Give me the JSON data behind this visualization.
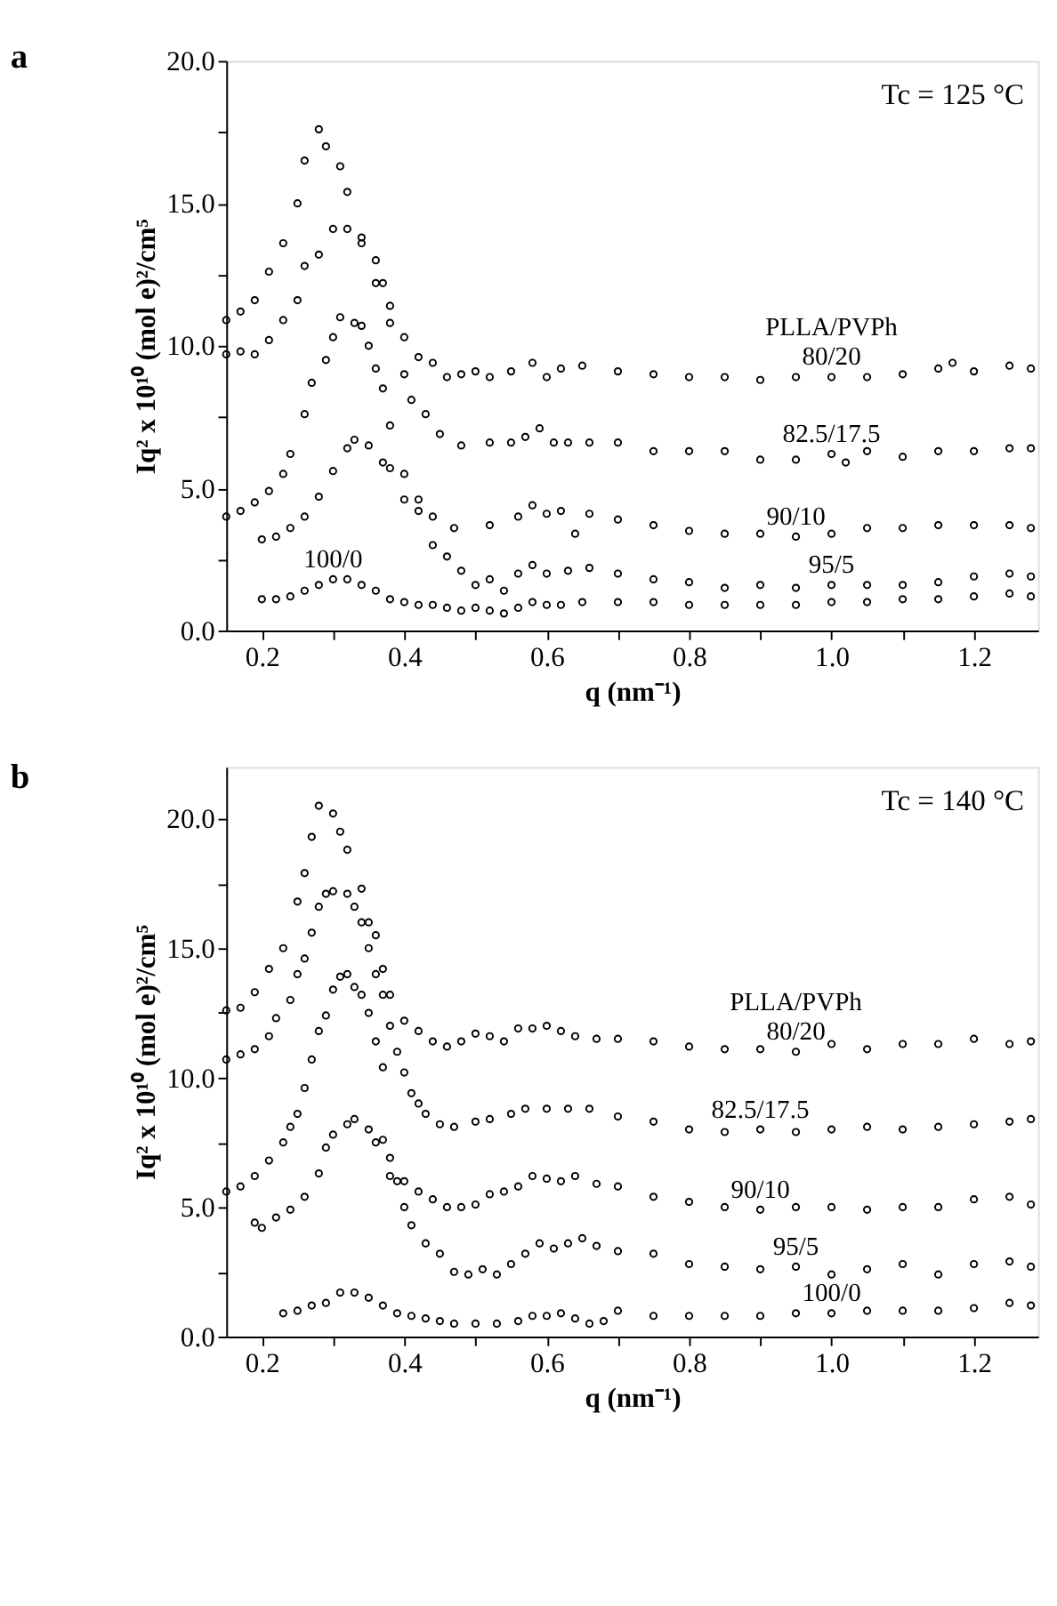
{
  "chart_data": [
    {
      "type": "scatter",
      "title": "a",
      "xlabel": "q (nm⁻¹)",
      "ylabel": "Iq² x 10¹⁰ (mol e)²/cm⁵",
      "legend_title": "PLLA/PVPh",
      "annotations": [
        "Tc = 125 °C"
      ],
      "marker": "circle",
      "grid": false,
      "legend": false,
      "xlim": [
        0.15,
        1.29
      ],
      "ylim": [
        0,
        20
      ],
      "xticks": [
        {
          "value": 0.2,
          "label": "0.2"
        },
        {
          "value": 0.3,
          "label": null
        },
        {
          "value": 0.4,
          "label": "0.4"
        },
        {
          "value": 0.5,
          "label": null
        },
        {
          "value": 0.6,
          "label": "0.6"
        },
        {
          "value": 0.7,
          "label": null
        },
        {
          "value": 0.8,
          "label": "0.8"
        },
        {
          "value": 0.9,
          "label": null
        },
        {
          "value": 1.0,
          "label": "1.0"
        },
        {
          "value": 1.1,
          "label": null
        },
        {
          "value": 1.2,
          "label": "1.2"
        }
      ],
      "yticks": [
        {
          "value": 0,
          "label": "0.0"
        },
        {
          "value": 2.5,
          "label": null
        },
        {
          "value": 5,
          "label": "5.0"
        },
        {
          "value": 7.5,
          "label": null
        },
        {
          "value": 10,
          "label": "10.0"
        },
        {
          "value": 12.5,
          "label": null
        },
        {
          "value": 15,
          "label": "15.0"
        },
        {
          "value": 17.5,
          "label": null
        },
        {
          "value": 20,
          "label": "20.0"
        }
      ],
      "series": [
        {
          "name": "80/20",
          "color": "#000000",
          "x": [
            0.15,
            0.17,
            0.19,
            0.21,
            0.23,
            0.25,
            0.26,
            0.28,
            0.29,
            0.31,
            0.32,
            0.34,
            0.36,
            0.38,
            0.4,
            0.42,
            0.44,
            0.46,
            0.48,
            0.5,
            0.52,
            0.55,
            0.58,
            0.6,
            0.62,
            0.65,
            0.7,
            0.75,
            0.8,
            0.85,
            0.9,
            0.95,
            1.0,
            1.05,
            1.1,
            1.15,
            1.17,
            1.2,
            1.25,
            1.28
          ],
          "values": [
            10.9,
            11.2,
            11.6,
            12.6,
            13.6,
            15.0,
            16.5,
            17.6,
            17.0,
            16.3,
            15.4,
            13.8,
            12.2,
            10.8,
            10.3,
            9.6,
            9.4,
            8.9,
            9.0,
            9.1,
            8.9,
            9.1,
            9.4,
            8.9,
            9.2,
            9.3,
            9.1,
            9.0,
            8.9,
            8.9,
            8.8,
            8.9,
            8.9,
            8.9,
            9.0,
            9.2,
            9.4,
            9.1,
            9.3,
            9.2
          ]
        },
        {
          "name": "82.5/17.5",
          "color": "#000000",
          "x": [
            0.15,
            0.17,
            0.19,
            0.21,
            0.23,
            0.25,
            0.26,
            0.28,
            0.3,
            0.32,
            0.34,
            0.36,
            0.37,
            0.38,
            0.4,
            0.41,
            0.43,
            0.45,
            0.48,
            0.52,
            0.55,
            0.57,
            0.59,
            0.61,
            0.63,
            0.66,
            0.7,
            0.75,
            0.8,
            0.85,
            0.9,
            0.95,
            1.0,
            1.02,
            1.05,
            1.1,
            1.15,
            1.2,
            1.25,
            1.28
          ],
          "values": [
            9.7,
            9.8,
            9.7,
            10.2,
            10.9,
            11.6,
            12.8,
            13.2,
            14.1,
            14.1,
            13.6,
            13.0,
            12.2,
            11.4,
            9.0,
            8.1,
            7.6,
            6.9,
            6.5,
            6.6,
            6.6,
            6.8,
            7.1,
            6.6,
            6.6,
            6.6,
            6.6,
            6.3,
            6.3,
            6.3,
            6.0,
            6.0,
            6.2,
            5.9,
            6.3,
            6.1,
            6.3,
            6.3,
            6.4,
            6.4
          ]
        },
        {
          "name": "90/10",
          "color": "#000000",
          "x": [
            0.15,
            0.17,
            0.19,
            0.21,
            0.23,
            0.24,
            0.26,
            0.27,
            0.29,
            0.3,
            0.31,
            0.33,
            0.34,
            0.35,
            0.36,
            0.37,
            0.38,
            0.4,
            0.42,
            0.44,
            0.47,
            0.52,
            0.56,
            0.58,
            0.6,
            0.62,
            0.64,
            0.66,
            0.7,
            0.75,
            0.8,
            0.85,
            0.9,
            0.95,
            1.0,
            1.05,
            1.1,
            1.15,
            1.2,
            1.25,
            1.28
          ],
          "values": [
            4.0,
            4.2,
            4.5,
            4.9,
            5.5,
            6.2,
            7.6,
            8.7,
            9.5,
            10.3,
            11.0,
            10.8,
            10.7,
            10.0,
            9.2,
            8.5,
            7.2,
            5.5,
            4.6,
            4.0,
            3.6,
            3.7,
            4.0,
            4.4,
            4.1,
            4.2,
            3.4,
            4.1,
            3.9,
            3.7,
            3.5,
            3.4,
            3.4,
            3.3,
            3.4,
            3.6,
            3.6,
            3.7,
            3.7,
            3.7,
            3.6
          ]
        },
        {
          "name": "95/5",
          "color": "#000000",
          "x": [
            0.2,
            0.22,
            0.24,
            0.26,
            0.28,
            0.3,
            0.32,
            0.33,
            0.35,
            0.37,
            0.38,
            0.4,
            0.42,
            0.44,
            0.46,
            0.48,
            0.5,
            0.52,
            0.54,
            0.56,
            0.58,
            0.6,
            0.63,
            0.66,
            0.7,
            0.75,
            0.8,
            0.85,
            0.9,
            0.95,
            1.0,
            1.05,
            1.1,
            1.15,
            1.2,
            1.25,
            1.28
          ],
          "values": [
            3.2,
            3.3,
            3.6,
            4.0,
            4.7,
            5.6,
            6.4,
            6.7,
            6.5,
            5.9,
            5.7,
            4.6,
            4.2,
            3.0,
            2.6,
            2.1,
            1.6,
            1.8,
            1.4,
            2.0,
            2.3,
            2.0,
            2.1,
            2.2,
            2.0,
            1.8,
            1.7,
            1.5,
            1.6,
            1.5,
            1.6,
            1.6,
            1.6,
            1.7,
            1.9,
            2.0,
            1.9
          ]
        },
        {
          "name": "100/0",
          "color": "#000000",
          "x": [
            0.2,
            0.22,
            0.24,
            0.26,
            0.28,
            0.3,
            0.32,
            0.34,
            0.36,
            0.38,
            0.4,
            0.42,
            0.44,
            0.46,
            0.48,
            0.5,
            0.52,
            0.54,
            0.56,
            0.58,
            0.6,
            0.62,
            0.65,
            0.7,
            0.75,
            0.8,
            0.85,
            0.9,
            0.95,
            1.0,
            1.05,
            1.1,
            1.15,
            1.2,
            1.25,
            1.28
          ],
          "values": [
            1.1,
            1.1,
            1.2,
            1.4,
            1.6,
            1.8,
            1.8,
            1.6,
            1.4,
            1.1,
            1.0,
            0.9,
            0.9,
            0.8,
            0.7,
            0.8,
            0.7,
            0.6,
            0.8,
            1.0,
            0.9,
            0.9,
            1.0,
            1.0,
            1.0,
            0.9,
            0.9,
            0.9,
            0.9,
            1.0,
            1.0,
            1.1,
            1.1,
            1.2,
            1.3,
            1.2
          ]
        }
      ]
    },
    {
      "type": "scatter",
      "title": "b",
      "xlabel": "q (nm⁻¹)",
      "ylabel": "Iq² x 10¹⁰ (mol e)²/cm⁵",
      "legend_title": "PLLA/PVPh",
      "annotations": [
        "Tc = 140 °C"
      ],
      "marker": "circle",
      "grid": false,
      "legend": false,
      "xlim": [
        0.15,
        1.29
      ],
      "ylim": [
        0,
        22
      ],
      "xticks": [
        {
          "value": 0.2,
          "label": "0.2"
        },
        {
          "value": 0.3,
          "label": null
        },
        {
          "value": 0.4,
          "label": "0.4"
        },
        {
          "value": 0.5,
          "label": null
        },
        {
          "value": 0.6,
          "label": "0.6"
        },
        {
          "value": 0.7,
          "label": null
        },
        {
          "value": 0.8,
          "label": "0.8"
        },
        {
          "value": 0.9,
          "label": null
        },
        {
          "value": 1.0,
          "label": "1.0"
        },
        {
          "value": 1.1,
          "label": null
        },
        {
          "value": 1.2,
          "label": "1.2"
        }
      ],
      "yticks": [
        {
          "value": 0,
          "label": "0.0"
        },
        {
          "value": 2.5,
          "label": null
        },
        {
          "value": 5,
          "label": "5.0"
        },
        {
          "value": 7.5,
          "label": null
        },
        {
          "value": 10,
          "label": "10.0"
        },
        {
          "value": 12.5,
          "label": null
        },
        {
          "value": 15,
          "label": "15.0"
        },
        {
          "value": 17.5,
          "label": null
        },
        {
          "value": 20,
          "label": "20.0"
        }
      ],
      "series": [
        {
          "name": "80/20",
          "color": "#000000",
          "x": [
            0.15,
            0.17,
            0.19,
            0.21,
            0.23,
            0.25,
            0.26,
            0.27,
            0.28,
            0.3,
            0.31,
            0.32,
            0.34,
            0.35,
            0.36,
            0.37,
            0.38,
            0.4,
            0.42,
            0.44,
            0.46,
            0.48,
            0.5,
            0.52,
            0.54,
            0.56,
            0.58,
            0.6,
            0.62,
            0.64,
            0.67,
            0.7,
            0.75,
            0.8,
            0.85,
            0.9,
            0.95,
            1.0,
            1.05,
            1.1,
            1.15,
            1.2,
            1.25,
            1.28
          ],
          "values": [
            12.6,
            12.7,
            13.3,
            14.2,
            15.0,
            16.8,
            17.9,
            19.3,
            20.5,
            20.2,
            19.5,
            18.8,
            17.3,
            16.0,
            15.5,
            14.2,
            13.2,
            12.2,
            11.8,
            11.4,
            11.2,
            11.4,
            11.7,
            11.6,
            11.4,
            11.9,
            11.9,
            12.0,
            11.8,
            11.6,
            11.5,
            11.5,
            11.4,
            11.2,
            11.1,
            11.1,
            11.0,
            11.3,
            11.1,
            11.3,
            11.3,
            11.5,
            11.3,
            11.4
          ]
        },
        {
          "name": "82.5/17.5",
          "color": "#000000",
          "x": [
            0.15,
            0.17,
            0.19,
            0.21,
            0.22,
            0.24,
            0.25,
            0.26,
            0.27,
            0.28,
            0.29,
            0.3,
            0.32,
            0.33,
            0.34,
            0.35,
            0.36,
            0.37,
            0.38,
            0.39,
            0.4,
            0.41,
            0.42,
            0.43,
            0.45,
            0.47,
            0.5,
            0.52,
            0.55,
            0.57,
            0.6,
            0.63,
            0.66,
            0.7,
            0.75,
            0.8,
            0.85,
            0.9,
            0.95,
            1.0,
            1.05,
            1.1,
            1.15,
            1.2,
            1.25,
            1.28
          ],
          "values": [
            10.7,
            10.9,
            11.1,
            11.6,
            12.3,
            13.0,
            14.0,
            14.6,
            15.6,
            16.6,
            17.1,
            17.2,
            17.1,
            16.6,
            16.0,
            15.0,
            14.0,
            13.2,
            12.0,
            11.0,
            10.2,
            9.4,
            9.0,
            8.6,
            8.2,
            8.1,
            8.3,
            8.4,
            8.6,
            8.8,
            8.8,
            8.8,
            8.8,
            8.5,
            8.3,
            8.0,
            7.9,
            8.0,
            7.9,
            8.0,
            8.1,
            8.0,
            8.1,
            8.2,
            8.3,
            8.4
          ]
        },
        {
          "name": "90/10",
          "color": "#000000",
          "x": [
            0.15,
            0.17,
            0.19,
            0.21,
            0.23,
            0.24,
            0.25,
            0.26,
            0.27,
            0.28,
            0.29,
            0.3,
            0.31,
            0.32,
            0.33,
            0.34,
            0.35,
            0.36,
            0.37,
            0.38,
            0.4,
            0.42,
            0.44,
            0.46,
            0.48,
            0.5,
            0.52,
            0.54,
            0.56,
            0.58,
            0.6,
            0.62,
            0.64,
            0.67,
            0.7,
            0.75,
            0.8,
            0.85,
            0.9,
            0.95,
            1.0,
            1.05,
            1.1,
            1.15,
            1.2,
            1.25,
            1.28
          ],
          "values": [
            5.6,
            5.8,
            6.2,
            6.8,
            7.5,
            8.1,
            8.6,
            9.6,
            10.7,
            11.8,
            12.4,
            13.4,
            13.9,
            14.0,
            13.5,
            13.2,
            12.5,
            11.4,
            10.4,
            6.2,
            6.0,
            5.6,
            5.3,
            5.0,
            5.0,
            5.1,
            5.5,
            5.6,
            5.8,
            6.2,
            6.1,
            6.0,
            6.2,
            5.9,
            5.8,
            5.4,
            5.2,
            5.0,
            4.9,
            5.0,
            5.0,
            4.9,
            5.0,
            5.0,
            5.3,
            5.4,
            5.1
          ]
        },
        {
          "name": "95/5",
          "color": "#000000",
          "x": [
            0.19,
            0.2,
            0.22,
            0.24,
            0.26,
            0.28,
            0.29,
            0.3,
            0.32,
            0.33,
            0.35,
            0.36,
            0.37,
            0.38,
            0.39,
            0.4,
            0.41,
            0.43,
            0.45,
            0.47,
            0.49,
            0.51,
            0.53,
            0.55,
            0.57,
            0.59,
            0.61,
            0.63,
            0.65,
            0.67,
            0.7,
            0.75,
            0.8,
            0.85,
            0.9,
            0.95,
            1.0,
            1.05,
            1.1,
            1.15,
            1.2,
            1.25,
            1.28
          ],
          "values": [
            4.4,
            4.2,
            4.6,
            4.9,
            5.4,
            6.3,
            7.3,
            7.8,
            8.2,
            8.4,
            8.0,
            7.5,
            7.6,
            6.9,
            6.0,
            5.0,
            4.3,
            3.6,
            3.2,
            2.5,
            2.4,
            2.6,
            2.4,
            2.8,
            3.2,
            3.6,
            3.4,
            3.6,
            3.8,
            3.5,
            3.3,
            3.2,
            2.8,
            2.7,
            2.6,
            2.7,
            2.4,
            2.6,
            2.8,
            2.4,
            2.8,
            2.9,
            2.7
          ]
        },
        {
          "name": "100/0",
          "color": "#000000",
          "x": [
            0.23,
            0.25,
            0.27,
            0.29,
            0.31,
            0.33,
            0.35,
            0.37,
            0.39,
            0.41,
            0.43,
            0.45,
            0.47,
            0.5,
            0.53,
            0.56,
            0.58,
            0.6,
            0.62,
            0.64,
            0.66,
            0.68,
            0.7,
            0.75,
            0.8,
            0.85,
            0.9,
            0.95,
            1.0,
            1.05,
            1.1,
            1.15,
            1.2,
            1.25,
            1.28
          ],
          "values": [
            0.9,
            1.0,
            1.2,
            1.3,
            1.7,
            1.7,
            1.5,
            1.2,
            0.9,
            0.8,
            0.7,
            0.6,
            0.5,
            0.5,
            0.5,
            0.6,
            0.8,
            0.8,
            0.9,
            0.7,
            0.5,
            0.6,
            1.0,
            0.8,
            0.8,
            0.8,
            0.8,
            0.9,
            0.9,
            1.0,
            1.0,
            1.0,
            1.1,
            1.3,
            1.2
          ]
        }
      ]
    }
  ]
}
